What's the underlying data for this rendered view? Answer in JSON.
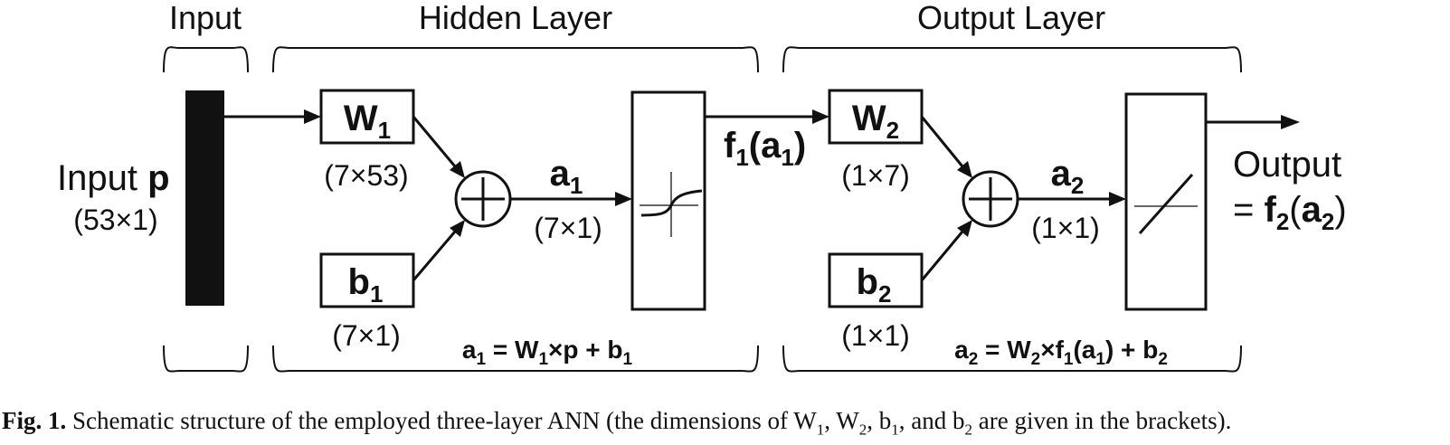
{
  "layers": {
    "input": "Input",
    "hidden": "Hidden Layer",
    "output": "Output Layer"
  },
  "input": {
    "label": "Input ",
    "symbol": "p",
    "dims": "(53×1)"
  },
  "hidden": {
    "weight": {
      "base": "W",
      "sub": "1",
      "dims": "(7×53)"
    },
    "bias": {
      "base": "b",
      "sub": "1",
      "dims": "(7×1)"
    },
    "net": {
      "base": "a",
      "sub": "1",
      "dims": "(7×1)"
    },
    "activation_out": {
      "f": "f",
      "f_sub": "1",
      "a": "a",
      "a_sub": "1"
    },
    "equation": {
      "a": "a",
      "a_sub": "1",
      "eq": " = ",
      "w": "W",
      "w_sub": "1",
      "times_p": "×p + ",
      "b": "b",
      "b_sub": "1"
    }
  },
  "output": {
    "weight": {
      "base": "W",
      "sub": "2",
      "dims": "(1×7)"
    },
    "bias": {
      "base": "b",
      "sub": "2",
      "dims": "(1×1)"
    },
    "net": {
      "base": "a",
      "sub": "2",
      "dims": "(1×1)"
    },
    "label": "Output",
    "formula": {
      "eq": "= ",
      "f": "f",
      "f_sub": "2",
      "a": "a",
      "a_sub": "2"
    },
    "equation": {
      "a": "a",
      "a_sub": "2",
      "eq": " = ",
      "w": "W",
      "w_sub": "2",
      "times": "×",
      "f": "f",
      "f_sub": "1",
      "a_in": "a",
      "a_in_sub": "1",
      "plus": " + ",
      "b": "b",
      "b_sub": "2"
    }
  },
  "caption": {
    "fig": "Fig. 1.",
    "text_a": " Schematic structure of the employed three-layer ANN (the dimensions of W",
    "w1_sub": "1",
    "text_b": ", W",
    "w2_sub": "2",
    "text_c": ", b",
    "b1_sub": "1",
    "text_d": ", and b",
    "b2_sub": "2",
    "text_e": " are given in the brackets)."
  }
}
